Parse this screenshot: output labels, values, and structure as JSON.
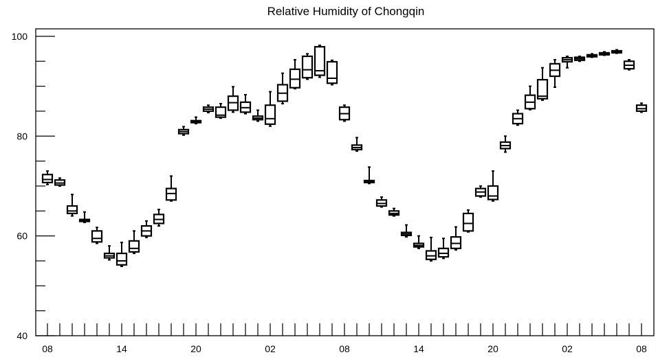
{
  "chart_data": {
    "type": "box",
    "title": "Relative Humidity of Chongqin",
    "xlabel": "",
    "ylabel": "",
    "ylim": [
      40,
      101.5
    ],
    "y_ticks": [
      40,
      60,
      80,
      100
    ],
    "y_tick_labels": [
      "40",
      "60",
      "80",
      "100"
    ],
    "x_tick_labels": [
      "08",
      "14",
      "20",
      "02",
      "08",
      "14",
      "20",
      "02",
      "08"
    ],
    "x_label_hours": [
      0,
      6,
      12,
      18,
      24,
      30,
      36,
      42,
      48
    ],
    "x_minor_step_hours": 1,
    "grid": false,
    "boxes": [
      {
        "hour": 0,
        "q1": 70.7,
        "median": 71.3,
        "q3": 72.3,
        "low": 70.3,
        "high": 73.0
      },
      {
        "hour": 1,
        "q1": 70.2,
        "median": 70.6,
        "q3": 71.2,
        "low": 70.0,
        "high": 71.6
      },
      {
        "hour": 2,
        "q1": 64.5,
        "median": 65.0,
        "q3": 66.0,
        "low": 64.0,
        "high": 68.3
      },
      {
        "hour": 3,
        "q1": 62.9,
        "median": 63.1,
        "q3": 63.3,
        "low": 62.7,
        "high": 64.8
      },
      {
        "hour": 4,
        "q1": 58.8,
        "median": 59.5,
        "q3": 61.0,
        "low": 58.5,
        "high": 61.7
      },
      {
        "hour": 5,
        "q1": 55.6,
        "median": 56.0,
        "q3": 56.5,
        "low": 55.2,
        "high": 58.0
      },
      {
        "hour": 6,
        "q1": 54.2,
        "median": 55.0,
        "q3": 56.5,
        "low": 53.9,
        "high": 58.7
      },
      {
        "hour": 7,
        "q1": 56.8,
        "median": 57.5,
        "q3": 59.0,
        "low": 56.5,
        "high": 61.0
      },
      {
        "hour": 8,
        "q1": 60.0,
        "median": 61.0,
        "q3": 62.0,
        "low": 59.7,
        "high": 63.0
      },
      {
        "hour": 9,
        "q1": 62.5,
        "median": 63.3,
        "q3": 64.3,
        "low": 62.0,
        "high": 65.3
      },
      {
        "hour": 10,
        "q1": 67.2,
        "median": 68.5,
        "q3": 69.5,
        "low": 67.0,
        "high": 72.0
      },
      {
        "hour": 11,
        "q1": 80.5,
        "median": 80.9,
        "q3": 81.3,
        "low": 80.2,
        "high": 81.9
      },
      {
        "hour": 12,
        "q1": 82.7,
        "median": 82.9,
        "q3": 83.1,
        "low": 82.5,
        "high": 83.8
      },
      {
        "hour": 13,
        "q1": 85.0,
        "median": 85.4,
        "q3": 85.8,
        "low": 84.7,
        "high": 86.2
      },
      {
        "hour": 14,
        "q1": 83.8,
        "median": 84.2,
        "q3": 85.8,
        "low": 83.6,
        "high": 86.5
      },
      {
        "hour": 15,
        "q1": 85.2,
        "median": 86.7,
        "q3": 88.0,
        "low": 84.8,
        "high": 89.9
      },
      {
        "hour": 16,
        "q1": 84.8,
        "median": 85.7,
        "q3": 86.8,
        "low": 84.5,
        "high": 88.3
      },
      {
        "hour": 17,
        "q1": 83.3,
        "median": 83.6,
        "q3": 84.0,
        "low": 83.0,
        "high": 85.2
      },
      {
        "hour": 18,
        "q1": 82.4,
        "median": 83.5,
        "q3": 86.2,
        "low": 82.0,
        "high": 88.9
      },
      {
        "hour": 19,
        "q1": 87.0,
        "median": 88.6,
        "q3": 90.3,
        "low": 86.5,
        "high": 92.6
      },
      {
        "hour": 20,
        "q1": 89.7,
        "median": 91.4,
        "q3": 93.4,
        "low": 89.5,
        "high": 95.3
      },
      {
        "hour": 21,
        "q1": 91.7,
        "median": 93.3,
        "q3": 96.0,
        "low": 91.4,
        "high": 96.5
      },
      {
        "hour": 22,
        "q1": 92.2,
        "median": 93.1,
        "q3": 97.9,
        "low": 91.8,
        "high": 98.2
      },
      {
        "hour": 23,
        "q1": 90.6,
        "median": 91.6,
        "q3": 94.9,
        "low": 90.3,
        "high": 95.2
      },
      {
        "hour": 24,
        "q1": 83.3,
        "median": 84.5,
        "q3": 85.8,
        "low": 83.0,
        "high": 86.2
      },
      {
        "hour": 25,
        "q1": 77.3,
        "median": 77.7,
        "q3": 78.2,
        "low": 77.0,
        "high": 79.7
      },
      {
        "hour": 26,
        "q1": 70.7,
        "median": 70.9,
        "q3": 71.1,
        "low": 70.5,
        "high": 73.8
      },
      {
        "hour": 27,
        "q1": 66.0,
        "median": 66.5,
        "q3": 67.2,
        "low": 65.8,
        "high": 67.8
      },
      {
        "hour": 28,
        "q1": 64.2,
        "median": 64.5,
        "q3": 65.0,
        "low": 64.0,
        "high": 65.5
      },
      {
        "hour": 29,
        "q1": 60.1,
        "median": 60.4,
        "q3": 60.7,
        "low": 59.8,
        "high": 62.2
      },
      {
        "hour": 30,
        "q1": 57.8,
        "median": 58.1,
        "q3": 58.5,
        "low": 57.5,
        "high": 60.0
      },
      {
        "hour": 31,
        "q1": 55.3,
        "median": 56.0,
        "q3": 57.0,
        "low": 55.0,
        "high": 59.7
      },
      {
        "hour": 32,
        "q1": 55.8,
        "median": 56.5,
        "q3": 57.5,
        "low": 55.5,
        "high": 59.5
      },
      {
        "hour": 33,
        "q1": 57.5,
        "median": 58.5,
        "q3": 59.8,
        "low": 57.2,
        "high": 61.8
      },
      {
        "hour": 34,
        "q1": 61.0,
        "median": 62.5,
        "q3": 64.5,
        "low": 60.8,
        "high": 65.2
      },
      {
        "hour": 35,
        "q1": 68.0,
        "median": 68.8,
        "q3": 69.5,
        "low": 67.8,
        "high": 70.0
      },
      {
        "hour": 36,
        "q1": 67.3,
        "median": 68.0,
        "q3": 70.0,
        "low": 67.0,
        "high": 73.0
      },
      {
        "hour": 37,
        "q1": 77.5,
        "median": 78.1,
        "q3": 78.8,
        "low": 76.8,
        "high": 80.0
      },
      {
        "hour": 38,
        "q1": 82.5,
        "median": 83.5,
        "q3": 84.5,
        "low": 82.2,
        "high": 85.2
      },
      {
        "hour": 39,
        "q1": 85.5,
        "median": 86.8,
        "q3": 88.2,
        "low": 85.3,
        "high": 90.0
      },
      {
        "hour": 40,
        "q1": 87.5,
        "median": 88.0,
        "q3": 91.3,
        "low": 87.2,
        "high": 93.7
      },
      {
        "hour": 41,
        "q1": 92.0,
        "median": 93.2,
        "q3": 94.5,
        "low": 89.8,
        "high": 95.3
      },
      {
        "hour": 42,
        "q1": 94.9,
        "median": 95.3,
        "q3": 95.7,
        "low": 93.7,
        "high": 96.0
      },
      {
        "hour": 43,
        "q1": 95.2,
        "median": 95.5,
        "q3": 95.8,
        "low": 95.0,
        "high": 96.0
      },
      {
        "hour": 44,
        "q1": 95.9,
        "median": 96.1,
        "q3": 96.3,
        "low": 95.8,
        "high": 96.5
      },
      {
        "hour": 45,
        "q1": 96.3,
        "median": 96.5,
        "q3": 96.7,
        "low": 96.2,
        "high": 96.9
      },
      {
        "hour": 46,
        "q1": 96.7,
        "median": 96.9,
        "q3": 97.1,
        "low": 96.6,
        "high": 97.3
      },
      {
        "hour": 47,
        "q1": 93.5,
        "median": 94.2,
        "q3": 95.0,
        "low": 93.3,
        "high": 95.3
      },
      {
        "hour": 48,
        "q1": 85.0,
        "median": 85.5,
        "q3": 86.2,
        "low": 84.8,
        "high": 86.6
      }
    ]
  }
}
